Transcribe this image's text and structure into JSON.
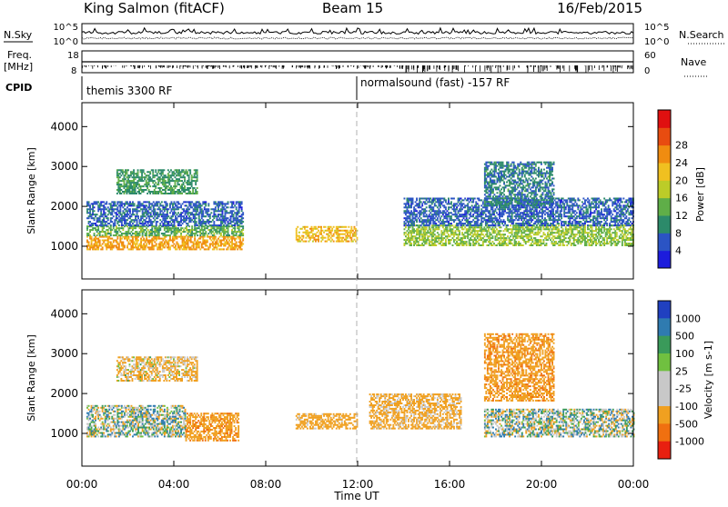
{
  "header": {
    "radar": "King Salmon (fitACF)",
    "beam": "Beam 15",
    "date": "16/Feb/2015"
  },
  "info_panels": {
    "nsky_label": "N.Sky",
    "nsky_ticks": [
      "10^5",
      "10^0"
    ],
    "nsearch_label": "N.Search",
    "nsearch_ticks": [
      "10^5",
      "10^0"
    ],
    "freq_label": "Freq.",
    "freq_unit": "[MHz]",
    "freq_ticks": [
      "18",
      "8"
    ],
    "nave_label": "Nave",
    "nave_ticks": [
      "60",
      "0"
    ],
    "cpid_label": "CPID",
    "cpid_segments": [
      {
        "text": "themis 3300 RF",
        "start_hour": 0,
        "end_hour": 12
      },
      {
        "text": "normalsound (fast) -157 RF",
        "start_hour": 12,
        "end_hour": 24
      }
    ]
  },
  "x_axis": {
    "label": "Time UT",
    "ticks": [
      "00:00",
      "04:00",
      "08:00",
      "12:00",
      "16:00",
      "20:00",
      "00:00"
    ],
    "tick_hours": [
      0,
      4,
      8,
      12,
      16,
      20,
      24
    ],
    "range_hours": [
      0,
      24
    ]
  },
  "panels": {
    "power": {
      "ylabel": "Slant Range [km]",
      "yticks": [
        "1000",
        "2000",
        "3000",
        "4000"
      ],
      "ytick_values": [
        1000,
        2000,
        3000,
        4000
      ],
      "cb_label": "Power [dB]",
      "cb_ticks": [
        "4",
        "8",
        "12",
        "16",
        "20",
        "24",
        "28"
      ]
    },
    "velocity": {
      "ylabel": "Slant Range [km]",
      "yticks": [
        "1000",
        "2000",
        "3000",
        "4000"
      ],
      "ytick_values": [
        1000,
        2000,
        3000,
        4000
      ],
      "cb_label": "Velocity [m s-1]",
      "cb_ticks": [
        "1000",
        "500",
        "100",
        "25",
        "-25",
        "-100",
        "-500",
        "-1000"
      ]
    }
  },
  "colors": {
    "power_scale": [
      "#1c1cdc",
      "#2b54c4",
      "#2c8a6a",
      "#5fae48",
      "#bccc28",
      "#f0c020",
      "#f08c10",
      "#e84c10",
      "#e01010"
    ],
    "velocity_scale": [
      "#2040c0",
      "#2f7bb0",
      "#3a9a5a",
      "#70c040",
      "#c8c8c8",
      "#c8c8c8",
      "#f0a020",
      "#f07010",
      "#e82010"
    ],
    "grid_dash": "#b0b0b0"
  },
  "chart_data": [
    {
      "type": "heatmap",
      "title": "Power",
      "xlabel": "Time UT",
      "ylabel": "Slant Range [km]",
      "xlim": [
        0,
        24
      ],
      "ylim": [
        180,
        4600
      ],
      "zlabel": "Power [dB]",
      "zlim": [
        0,
        32
      ],
      "regions": [
        {
          "t": [
            0.2,
            7.0
          ],
          "r": [
            900,
            1250
          ],
          "level": 22
        },
        {
          "t": [
            0.2,
            7.0
          ],
          "r": [
            1250,
            1500
          ],
          "level": 12
        },
        {
          "t": [
            1.5,
            5.0
          ],
          "r": [
            2300,
            2900
          ],
          "level": 10
        },
        {
          "t": [
            0.2,
            7.0
          ],
          "r": [
            1500,
            2100
          ],
          "level": 6
        },
        {
          "t": [
            9.3,
            12.0
          ],
          "r": [
            1100,
            1500
          ],
          "level": 20
        },
        {
          "t": [
            14.0,
            24.0
          ],
          "r": [
            1000,
            1500
          ],
          "level": 14
        },
        {
          "t": [
            14.0,
            24.0
          ],
          "r": [
            1500,
            2200
          ],
          "level": 6
        },
        {
          "t": [
            17.5,
            20.5
          ],
          "r": [
            2000,
            3100
          ],
          "level": 8
        }
      ]
    },
    {
      "type": "heatmap",
      "title": "Velocity",
      "xlabel": "Time UT",
      "ylabel": "Slant Range [km]",
      "xlim": [
        0,
        24
      ],
      "ylim": [
        180,
        4600
      ],
      "zlabel": "Velocity [m s-1]",
      "zlim": [
        -1000,
        1000
      ],
      "regions": [
        {
          "t": [
            0.2,
            4.5
          ],
          "r": [
            900,
            1700
          ],
          "level": 0
        },
        {
          "t": [
            1.5,
            5.0
          ],
          "r": [
            2300,
            2900
          ],
          "level": -150
        },
        {
          "t": [
            4.5,
            6.8
          ],
          "r": [
            800,
            1500
          ],
          "level": -400
        },
        {
          "t": [
            9.3,
            12.0
          ],
          "r": [
            1100,
            1500
          ],
          "level": -250
        },
        {
          "t": [
            12.5,
            16.5
          ],
          "r": [
            1100,
            2000
          ],
          "level": -200
        },
        {
          "t": [
            17.5,
            24.0
          ],
          "r": [
            900,
            1600
          ],
          "level": 0
        },
        {
          "t": [
            17.5,
            20.5
          ],
          "r": [
            1800,
            3500
          ],
          "level": -400
        }
      ]
    }
  ]
}
